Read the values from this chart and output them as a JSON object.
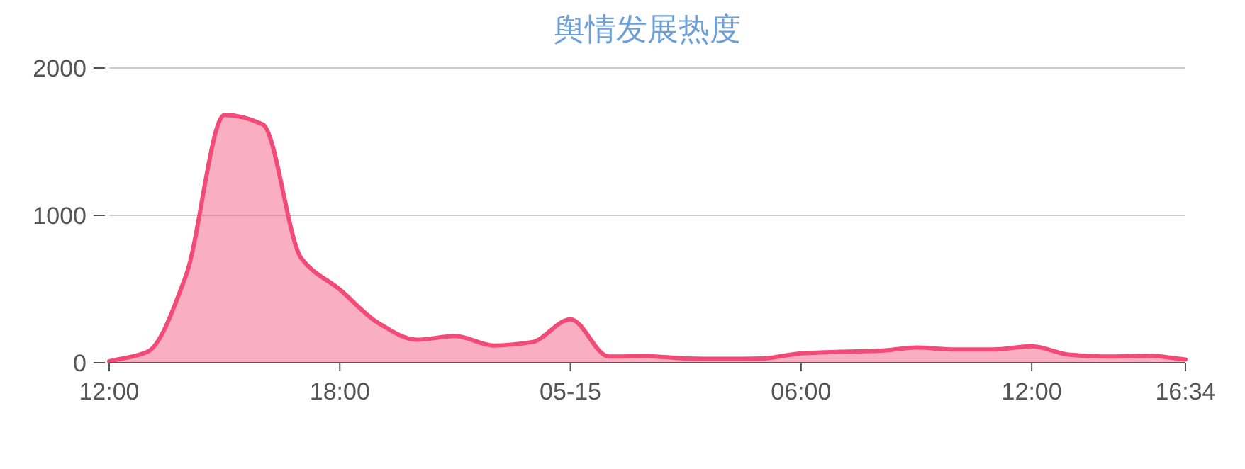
{
  "chart_data": {
    "type": "area",
    "title": "舆情发展热度",
    "categories": [
      "12:00",
      null,
      null,
      null,
      null,
      null,
      "18:00",
      null,
      null,
      null,
      null,
      null,
      "05-15",
      null,
      null,
      null,
      null,
      null,
      "06:00",
      null,
      null,
      null,
      null,
      null,
      "12:00",
      null,
      null,
      null,
      "16:34"
    ],
    "values": [
      10,
      75,
      594,
      1682,
      1617,
      708,
      497,
      270,
      156,
      182,
      117,
      140,
      295,
      42,
      45,
      29,
      26,
      29,
      64,
      74,
      80,
      103,
      90,
      90,
      112,
      54,
      42,
      48,
      22
    ],
    "color": "#f34b78",
    "ylim": [
      0,
      2000
    ],
    "yticks": [
      0,
      1000,
      2000
    ],
    "grid": "y"
  }
}
